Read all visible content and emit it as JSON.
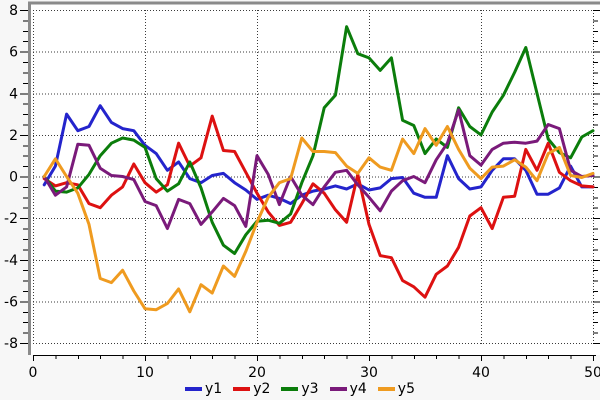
{
  "chart_data": {
    "type": "line",
    "title": "",
    "xlabel": "",
    "ylabel": "",
    "xlim": [
      0,
      50
    ],
    "ylim": [
      -8,
      8
    ],
    "x_ticks_major": [
      0,
      10,
      20,
      30,
      40,
      50
    ],
    "x_tick_minor_step": 2,
    "y_ticks_major": [
      8,
      6,
      4,
      2,
      0,
      -2,
      -4,
      -6,
      -8
    ],
    "y_tick_minor_step": 0.5,
    "grid": "dotted",
    "legend_position": "bottom-center",
    "x": [
      1,
      2,
      3,
      4,
      5,
      6,
      7,
      8,
      9,
      10,
      11,
      12,
      13,
      14,
      15,
      16,
      17,
      18,
      19,
      20,
      21,
      22,
      23,
      24,
      25,
      26,
      27,
      28,
      29,
      30,
      31,
      32,
      33,
      34,
      35,
      36,
      37,
      38,
      39,
      40,
      41,
      42,
      43,
      44,
      45,
      46,
      47,
      48,
      49,
      50
    ],
    "series": [
      {
        "name": "y1",
        "color": "#2424cc",
        "values": [
          -0.4,
          0.5,
          3.0,
          2.2,
          2.4,
          3.4,
          2.6,
          2.3,
          2.2,
          1.5,
          1.1,
          0.3,
          0.7,
          -0.1,
          -0.3,
          0.05,
          0.15,
          -0.3,
          -0.65,
          -1.1,
          -0.9,
          -1.05,
          -1.3,
          -0.9,
          -0.7,
          -0.6,
          -0.45,
          -0.6,
          -0.35,
          -0.65,
          -0.55,
          -0.1,
          -0.05,
          -0.8,
          -1.0,
          -1.0,
          1.0,
          -0.1,
          -0.6,
          -0.5,
          0.3,
          0.85,
          0.85,
          0.3,
          -0.85,
          -0.85,
          -0.55,
          0.5,
          -0.5,
          -0.5
        ]
      },
      {
        "name": "y2",
        "color": "#dd1111",
        "values": [
          -0.1,
          -0.45,
          -0.3,
          -0.4,
          -1.3,
          -1.5,
          -0.9,
          -0.5,
          0.6,
          -0.3,
          -0.75,
          -0.4,
          1.6,
          0.5,
          0.9,
          2.9,
          1.25,
          1.2,
          0.2,
          -0.8,
          -1.7,
          -2.35,
          -2.2,
          -1.3,
          -0.35,
          -0.8,
          -1.6,
          -2.2,
          0.1,
          -2.3,
          -3.8,
          -3.9,
          -5.0,
          -5.3,
          -5.8,
          -4.7,
          -4.3,
          -3.4,
          -1.9,
          -1.5,
          -2.5,
          -1.0,
          -0.95,
          1.3,
          0.3,
          1.6,
          0.2,
          -0.2,
          -0.45,
          -0.5
        ]
      },
      {
        "name": "y3",
        "color": "#0b7d0b",
        "values": [
          0.0,
          -0.7,
          -0.75,
          -0.55,
          0.1,
          1.0,
          1.6,
          1.85,
          1.75,
          1.4,
          -0.1,
          -0.7,
          -0.35,
          0.7,
          -0.55,
          -2.2,
          -3.3,
          -3.7,
          -2.8,
          -2.15,
          -2.1,
          -2.25,
          -1.8,
          -0.3,
          1.0,
          3.3,
          3.9,
          7.2,
          5.9,
          5.7,
          5.1,
          5.7,
          2.7,
          2.45,
          1.1,
          1.8,
          1.4,
          3.3,
          2.4,
          2.0,
          3.1,
          3.9,
          5.0,
          6.2,
          4.0,
          1.8,
          1.15,
          0.9,
          1.9,
          2.2
        ]
      },
      {
        "name": "y4",
        "color": "#7a1a7a",
        "values": [
          0.0,
          -0.9,
          -0.5,
          1.55,
          1.5,
          0.4,
          0.05,
          0.0,
          -0.15,
          -1.2,
          -1.4,
          -2.5,
          -1.1,
          -1.3,
          -2.3,
          -1.7,
          -1.05,
          -1.4,
          -2.4,
          1.0,
          0.1,
          -1.35,
          0.0,
          -0.9,
          -1.35,
          -0.5,
          0.2,
          0.3,
          -0.4,
          -1.0,
          -1.65,
          -0.7,
          -0.2,
          0.0,
          -0.3,
          0.8,
          1.6,
          3.2,
          1.0,
          0.55,
          1.3,
          1.6,
          1.65,
          1.6,
          1.7,
          2.5,
          2.3,
          0.3,
          0.0,
          0.05
        ]
      },
      {
        "name": "y5",
        "color": "#ef9b20",
        "values": [
          0.0,
          0.85,
          0.0,
          -0.8,
          -2.3,
          -4.9,
          -5.1,
          -4.5,
          -5.5,
          -6.35,
          -6.4,
          -6.1,
          -5.4,
          -6.5,
          -5.2,
          -5.6,
          -4.3,
          -4.8,
          -3.6,
          -2.2,
          -1.0,
          -0.3,
          -0.1,
          1.85,
          1.2,
          1.2,
          1.15,
          0.5,
          0.15,
          0.9,
          0.45,
          0.3,
          1.8,
          1.1,
          2.3,
          1.5,
          2.4,
          1.3,
          0.4,
          -0.1,
          0.45,
          0.5,
          0.8,
          0.45,
          -0.2,
          1.1,
          1.4,
          0.05,
          -0.05,
          0.15
        ]
      }
    ]
  },
  "legend": {
    "items": [
      {
        "label": "y1",
        "color": "#2424cc"
      },
      {
        "label": "y2",
        "color": "#dd1111"
      },
      {
        "label": "y3",
        "color": "#0b7d0b"
      },
      {
        "label": "y4",
        "color": "#7a1a7a"
      },
      {
        "label": "y5",
        "color": "#ef9b20"
      }
    ]
  },
  "style_colors": {
    "outer_bg": "#f7f7f7",
    "plot_bg": "#ffffff",
    "grid": "#3a3a3a",
    "axis": "#000000",
    "bevel": "#8a8a8a",
    "tick_label": "#000000"
  }
}
